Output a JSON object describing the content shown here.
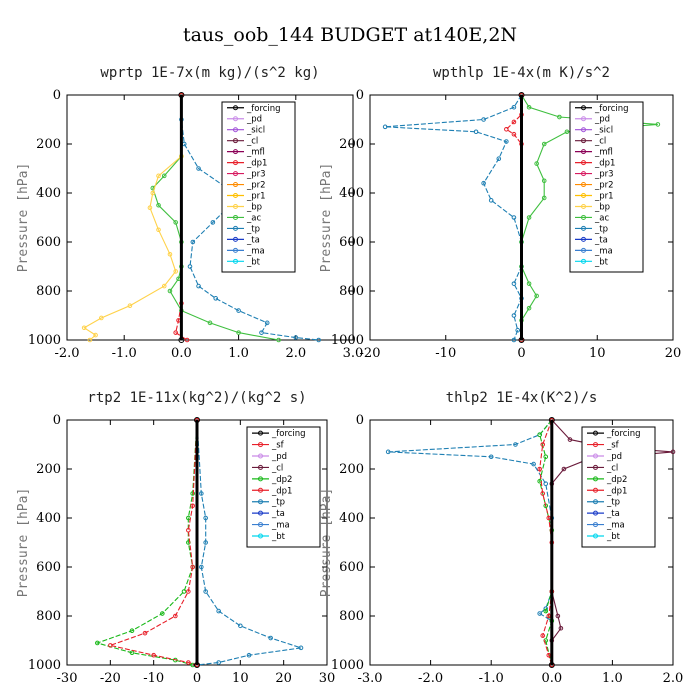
{
  "figure": {
    "title": "taus_oob_144  BUDGET at140E,2N"
  },
  "colors": {
    "forcing": "#000000",
    "sf": "#e8202a",
    "pd": "#c98be8",
    "sicl": "#a050d8",
    "cl": "#6a1b3b",
    "mfl": "#8b0057",
    "dp1": "#e8202a",
    "dp2": "#18b818",
    "pr3": "#d81b60",
    "pr2": "#ff8c00",
    "pr1": "#ffc000",
    "bp": "#ffd24a",
    "ac": "#3fbf3f",
    "tp": "#1e7fb3",
    "ta": "#1a3cc8",
    "ma": "#3a7fd0",
    "bt": "#00d6ee",
    "green2": "#18b818",
    "green1": "#5fd35f",
    "cl_yellow": "#ffd24a"
  },
  "chart_data": [
    {
      "type": "line",
      "title": "wprtp  1E-7x(m kg)/(s^2 kg)",
      "ylabel": "Pressure [hPa]",
      "xlim": [
        -2.0,
        3.0
      ],
      "ylim": [
        1000,
        0
      ],
      "xticks": [
        "-2.0",
        "-1.0",
        "0.0",
        "1.0",
        "2.0",
        "3.0"
      ],
      "yticks": [
        "0",
        "200",
        "400",
        "600",
        "800",
        "1000"
      ],
      "legend": [
        "_forcing",
        "_pd",
        "_sicl",
        "_cl",
        "_mfl",
        "_dp1",
        "_pr3",
        "_pr2",
        "_pr1",
        "_bp",
        "_ac",
        "_tp",
        "_ta",
        "_ma",
        "_bt"
      ],
      "legend_keys": [
        "forcing",
        "pd",
        "sicl",
        "cl",
        "mfl",
        "dp1",
        "pr3",
        "pr2",
        "pr1",
        "bp",
        "ac",
        "tp",
        "ta",
        "ma",
        "bt"
      ],
      "series": [
        {
          "key": "tp",
          "points": [
            [
              0,
              0
            ],
            [
              0,
              100
            ],
            [
              0.05,
              200
            ],
            [
              0.3,
              300
            ],
            [
              0.8,
              380
            ],
            [
              0.9,
              400
            ],
            [
              0.85,
              450
            ],
            [
              0.55,
              520
            ],
            [
              0.2,
              600
            ],
            [
              0.15,
              700
            ],
            [
              0.3,
              780
            ],
            [
              0.6,
              830
            ],
            [
              1.0,
              880
            ],
            [
              1.5,
              930
            ],
            [
              1.4,
              970
            ],
            [
              2.0,
              990
            ],
            [
              2.4,
              1000
            ]
          ]
        },
        {
          "key": "ac",
          "points": [
            [
              0,
              0
            ],
            [
              0,
              250
            ],
            [
              -0.3,
              330
            ],
            [
              -0.5,
              380
            ],
            [
              -0.4,
              450
            ],
            [
              -0.1,
              520
            ],
            [
              0,
              600
            ],
            [
              0,
              700
            ],
            [
              -0.05,
              750
            ],
            [
              -0.2,
              800
            ],
            [
              0,
              880
            ],
            [
              0.5,
              930
            ],
            [
              1.0,
              970
            ],
            [
              1.7,
              1000
            ]
          ]
        },
        {
          "key": "bp",
          "points": [
            [
              0,
              0
            ],
            [
              0,
              250
            ],
            [
              -0.4,
              330
            ],
            [
              -0.5,
              400
            ],
            [
              -0.55,
              460
            ],
            [
              -0.4,
              550
            ],
            [
              -0.2,
              650
            ],
            [
              -0.1,
              720
            ],
            [
              -0.3,
              780
            ],
            [
              -0.9,
              860
            ],
            [
              -1.4,
              910
            ],
            [
              -1.7,
              950
            ],
            [
              -1.5,
              980
            ],
            [
              -1.6,
              1000
            ]
          ]
        },
        {
          "key": "dp1",
          "points": [
            [
              0,
              0
            ],
            [
              0,
              850
            ],
            [
              -0.05,
              920
            ],
            [
              -0.1,
              970
            ],
            [
              0.1,
              1000
            ]
          ]
        },
        {
          "key": "forcing",
          "points": [
            [
              0,
              0
            ],
            [
              0,
              1000
            ]
          ]
        }
      ]
    },
    {
      "type": "line",
      "title": "wpthlp  1E-4x(m K)/s^2",
      "ylabel": "Pressure [hPa]",
      "xlim": [
        -20,
        20
      ],
      "ylim": [
        1000,
        0
      ],
      "xticks": [
        "-20",
        "-10",
        "0",
        "10",
        "20"
      ],
      "yticks": [
        "0",
        "200",
        "400",
        "600",
        "800",
        "1000"
      ],
      "legend": [
        "_forcing",
        "_pd",
        "_sicl",
        "_cl",
        "_mfl",
        "_dp1",
        "_pr3",
        "_pr2",
        "_pr1",
        "_bp",
        "_ac",
        "_tp",
        "_ta",
        "_ma",
        "_bt"
      ],
      "legend_keys": [
        "forcing",
        "pd",
        "sicl",
        "cl",
        "mfl",
        "dp1",
        "pr3",
        "pr2",
        "pr1",
        "bp",
        "ac",
        "tp",
        "ta",
        "ma",
        "bt"
      ],
      "series": [
        {
          "key": "tp",
          "points": [
            [
              0,
              0
            ],
            [
              -1,
              50
            ],
            [
              -5,
              100
            ],
            [
              -18,
              130
            ],
            [
              -6,
              150
            ],
            [
              -2,
              190
            ],
            [
              -3,
              260
            ],
            [
              -5,
              360
            ],
            [
              -4,
              430
            ],
            [
              -1,
              500
            ],
            [
              0,
              600
            ],
            [
              0,
              700
            ],
            [
              -1,
              770
            ],
            [
              0,
              830
            ],
            [
              -1,
              900
            ],
            [
              -0.5,
              960
            ],
            [
              -1,
              1000
            ]
          ]
        },
        {
          "key": "ac",
          "points": [
            [
              0,
              0
            ],
            [
              1,
              50
            ],
            [
              5,
              90
            ],
            [
              18,
              120
            ],
            [
              6,
              150
            ],
            [
              3,
              200
            ],
            [
              2,
              280
            ],
            [
              3,
              350
            ],
            [
              3,
              420
            ],
            [
              1,
              500
            ],
            [
              0,
              600
            ],
            [
              0,
              700
            ],
            [
              1,
              770
            ],
            [
              2,
              820
            ],
            [
              1,
              870
            ],
            [
              0,
              920
            ],
            [
              0,
              1000
            ]
          ]
        },
        {
          "key": "dp1",
          "points": [
            [
              0,
              0
            ],
            [
              0,
              80
            ],
            [
              -1,
              110
            ],
            [
              -2,
              140
            ],
            [
              -1,
              160
            ],
            [
              0,
              200
            ],
            [
              0,
              1000
            ]
          ]
        },
        {
          "key": "forcing",
          "points": [
            [
              0,
              0
            ],
            [
              0,
              1000
            ]
          ]
        }
      ]
    },
    {
      "type": "line",
      "title": "rtp2  1E-11x(kg^2)/(kg^2 s)",
      "ylabel": "Pressure [hPa]",
      "xlim": [
        -30,
        30
      ],
      "ylim": [
        1000,
        0
      ],
      "xticks": [
        "-30",
        "-20",
        "-10",
        "0",
        "10",
        "20",
        "30"
      ],
      "yticks": [
        "0",
        "200",
        "400",
        "600",
        "800",
        "1000"
      ],
      "legend": [
        "_forcing",
        "_sf",
        "_pd",
        "_cl",
        "_dp2",
        "_dp1",
        "_tp",
        "_ta",
        "_ma",
        "_bt"
      ],
      "legend_keys": [
        "forcing",
        "sf",
        "pd",
        "cl",
        "dp2",
        "dp1",
        "tp",
        "ta",
        "ma",
        "bt"
      ],
      "series": [
        {
          "key": "tp",
          "points": [
            [
              0,
              0
            ],
            [
              1,
              300
            ],
            [
              2,
              400
            ],
            [
              2,
              500
            ],
            [
              1,
              600
            ],
            [
              2,
              700
            ],
            [
              5,
              780
            ],
            [
              10,
              840
            ],
            [
              17,
              890
            ],
            [
              24,
              930
            ],
            [
              12,
              960
            ],
            [
              5,
              990
            ],
            [
              0,
              1000
            ]
          ]
        },
        {
          "key": "dp2",
          "points": [
            [
              0,
              0
            ],
            [
              -1,
              300
            ],
            [
              -2,
              400
            ],
            [
              -2,
              500
            ],
            [
              -1,
              600
            ],
            [
              -3,
              700
            ],
            [
              -8,
              790
            ],
            [
              -15,
              860
            ],
            [
              -23,
              910
            ],
            [
              -15,
              950
            ],
            [
              -5,
              980
            ],
            [
              -1,
              1000
            ]
          ]
        },
        {
          "key": "dp1",
          "points": [
            [
              0,
              0
            ],
            [
              -1,
              350
            ],
            [
              -2,
              450
            ],
            [
              -1,
              600
            ],
            [
              -2,
              700
            ],
            [
              -5,
              800
            ],
            [
              -12,
              870
            ],
            [
              -20,
              920
            ],
            [
              -10,
              960
            ],
            [
              -2,
              990
            ],
            [
              0,
              1000
            ]
          ]
        },
        {
          "key": "sf",
          "points": [
            [
              0,
              0
            ],
            [
              0,
              1000
            ]
          ]
        },
        {
          "key": "forcing",
          "points": [
            [
              0,
              0
            ],
            [
              0,
              1000
            ]
          ]
        }
      ]
    },
    {
      "type": "line",
      "title": "thlp2  1E-4x(K^2)/s",
      "ylabel": "Pressure [hPa]",
      "xlim": [
        -3.0,
        2.0
      ],
      "ylim": [
        1000,
        0
      ],
      "xticks": [
        "-3.0",
        "-2.0",
        "-1.0",
        "0.0",
        "1.0",
        "2.0"
      ],
      "yticks": [
        "0",
        "200",
        "400",
        "600",
        "800",
        "1000"
      ],
      "legend": [
        "_forcing",
        "_sf",
        "_pd",
        "_cl",
        "_dp2",
        "_dp1",
        "_tp",
        "_ta",
        "_ma",
        "_bt"
      ],
      "legend_keys": [
        "forcing",
        "sf",
        "pd",
        "cl",
        "dp2",
        "dp1",
        "tp",
        "ta",
        "ma",
        "bt"
      ],
      "series": [
        {
          "key": "tp",
          "points": [
            [
              0,
              0
            ],
            [
              -0.2,
              60
            ],
            [
              -0.6,
              100
            ],
            [
              -2.7,
              130
            ],
            [
              -1.0,
              150
            ],
            [
              -0.3,
              180
            ],
            [
              -0.1,
              260
            ],
            [
              0,
              400
            ],
            [
              0,
              700
            ],
            [
              -0.1,
              770
            ],
            [
              -0.2,
              790
            ],
            [
              0,
              820
            ],
            [
              0,
              1000
            ]
          ]
        },
        {
          "key": "cl",
          "points": [
            [
              0,
              0
            ],
            [
              0.3,
              80
            ],
            [
              0.9,
              110
            ],
            [
              2.0,
              130
            ],
            [
              0.6,
              160
            ],
            [
              0.2,
              200
            ],
            [
              0,
              260
            ],
            [
              0,
              700
            ],
            [
              0.1,
              800
            ],
            [
              0.15,
              850
            ],
            [
              0,
              900
            ],
            [
              0,
              1000
            ]
          ]
        },
        {
          "key": "dp2",
          "points": [
            [
              0,
              0
            ],
            [
              -0.2,
              60
            ],
            [
              -0.1,
              150
            ],
            [
              -0.2,
              250
            ],
            [
              -0.1,
              350
            ],
            [
              0,
              450
            ],
            [
              0,
              700
            ],
            [
              -0.1,
              780
            ],
            [
              0,
              820
            ],
            [
              -0.1,
              900
            ],
            [
              0,
              1000
            ]
          ]
        },
        {
          "key": "dp1",
          "points": [
            [
              0,
              0
            ],
            [
              -0.15,
              100
            ],
            [
              -0.2,
              200
            ],
            [
              -0.15,
              300
            ],
            [
              -0.05,
              400
            ],
            [
              0,
              500
            ],
            [
              0,
              700
            ],
            [
              -0.05,
              800
            ],
            [
              -0.15,
              880
            ],
            [
              -0.05,
              960
            ],
            [
              0,
              1000
            ]
          ]
        },
        {
          "key": "sf",
          "points": [
            [
              0,
              0
            ],
            [
              0,
              1000
            ]
          ]
        },
        {
          "key": "forcing",
          "points": [
            [
              0,
              0
            ],
            [
              0,
              1000
            ]
          ]
        }
      ]
    }
  ]
}
